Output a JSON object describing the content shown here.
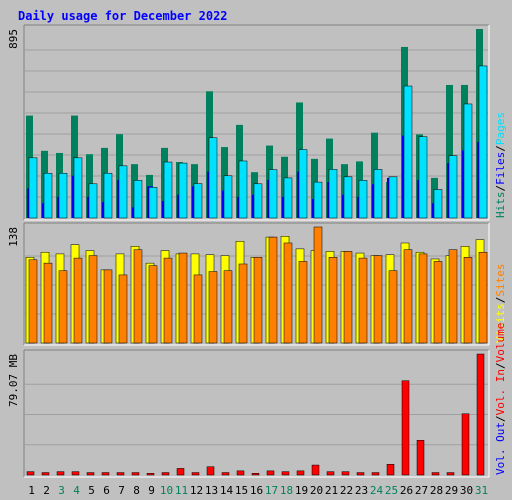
{
  "title": "Daily usage for December 2022",
  "colors": {
    "background": "#c0c0c0",
    "hits": "#00805c",
    "files": "#0000ff",
    "pages": "#00e0ff",
    "visits": "#ffff00",
    "sites": "#ff8000",
    "kbin": "#ff0000",
    "kbout": "#0000ff",
    "title": "#0000ff",
    "weekend_day": "#00805c"
  },
  "chart_data": [
    {
      "type": "bar",
      "name": "hits-files-pages",
      "categories": [
        "1",
        "2",
        "3",
        "4",
        "5",
        "6",
        "7",
        "8",
        "9",
        "10",
        "11",
        "12",
        "13",
        "14",
        "15",
        "16",
        "17",
        "18",
        "19",
        "20",
        "21",
        "22",
        "23",
        "24",
        "25",
        "26",
        "27",
        "28",
        "29",
        "30",
        "31"
      ],
      "weekend_days": [
        "3",
        "4",
        "10",
        "11",
        "17",
        "18",
        "24",
        "25",
        "31"
      ],
      "ymax_label": "895",
      "ylim": [
        0,
        895
      ],
      "side_labels": [
        "Hits",
        "Files",
        "Pages"
      ],
      "series": [
        {
          "name": "Hits",
          "values": [
            485,
            318,
            308,
            485,
            302,
            332,
            397,
            255,
            204,
            332,
            265,
            255,
            600,
            336,
            441,
            217,
            343,
            290,
            547,
            280,
            376,
            255,
            268,
            404,
            170,
            810,
            396,
            190,
            630,
            630,
            895
          ]
        },
        {
          "name": "Files",
          "values": [
            140,
            70,
            100,
            200,
            100,
            75,
            180,
            50,
            150,
            80,
            110,
            150,
            220,
            130,
            100,
            110,
            180,
            100,
            220,
            90,
            170,
            110,
            100,
            160,
            190,
            390,
            180,
            70,
            260,
            320,
            360
          ]
        },
        {
          "name": "Pages",
          "values": [
            285,
            212,
            212,
            285,
            162,
            212,
            247,
            178,
            145,
            265,
            260,
            163,
            380,
            200,
            270,
            162,
            229,
            190,
            324,
            170,
            230,
            195,
            178,
            230,
            195,
            625,
            385,
            135,
            295,
            540,
            720
          ]
        }
      ]
    },
    {
      "type": "bar",
      "name": "visits-sites",
      "categories": [
        "1",
        "2",
        "3",
        "4",
        "5",
        "6",
        "7",
        "8",
        "9",
        "10",
        "11",
        "12",
        "13",
        "14",
        "15",
        "16",
        "17",
        "18",
        "19",
        "20",
        "21",
        "22",
        "23",
        "24",
        "25",
        "26",
        "27",
        "28",
        "29",
        "30",
        "31"
      ],
      "ymax_label": "138",
      "ylim": [
        0,
        138
      ],
      "side_labels": [
        "Visits",
        "Sites"
      ],
      "series": [
        {
          "name": "Visits",
          "values": [
            102,
            108,
            106,
            117,
            110,
            87,
            106,
            115,
            95,
            110,
            106,
            106,
            105,
            104,
            121,
            102,
            126,
            127,
            112,
            110,
            109,
            109,
            107,
            104,
            105,
            119,
            108,
            100,
            104,
            115,
            123
          ]
        },
        {
          "name": "Sites",
          "values": [
            99,
            95,
            86,
            101,
            104,
            87,
            81,
            111,
            92,
            101,
            107,
            81,
            85,
            86,
            94,
            102,
            126,
            119,
            97,
            138,
            102,
            109,
            101,
            104,
            86,
            111,
            106,
            97,
            111,
            102,
            108
          ]
        }
      ]
    },
    {
      "type": "bar",
      "name": "volume",
      "categories": [
        "1",
        "2",
        "3",
        "4",
        "5",
        "6",
        "7",
        "8",
        "9",
        "10",
        "11",
        "12",
        "13",
        "14",
        "15",
        "16",
        "17",
        "18",
        "19",
        "20",
        "21",
        "22",
        "23",
        "24",
        "25",
        "26",
        "27",
        "28",
        "29",
        "30",
        "31"
      ],
      "ymax_label": "79.07 MB",
      "ylim": [
        0,
        79.07
      ],
      "side_labels": [
        "Vol. Out",
        "Vol. In",
        "Volume"
      ],
      "series": [
        {
          "name": "Volume",
          "values": [
            2.2,
            1.6,
            2.2,
            2.2,
            1.6,
            1.6,
            1.6,
            1.6,
            1.1,
            1.6,
            4.3,
            1.6,
            5.4,
            1.6,
            2.7,
            1.1,
            2.7,
            2.2,
            2.7,
            6.5,
            2.2,
            2.2,
            1.6,
            1.6,
            7.0,
            61.6,
            22.7,
            1.6,
            1.6,
            40.0,
            79.07
          ]
        },
        {
          "name": "Vol. In",
          "values": [
            0,
            0,
            0,
            0,
            0,
            0,
            0,
            0,
            0,
            0,
            0,
            0,
            0,
            0,
            0,
            0,
            0,
            0,
            0,
            0,
            0,
            0,
            0,
            0,
            0,
            0,
            0,
            0,
            0,
            0,
            0
          ]
        },
        {
          "name": "Vol. Out",
          "values": [
            0,
            0,
            0,
            0,
            0,
            0,
            0,
            0,
            0,
            0,
            0,
            0,
            0,
            0,
            0,
            0,
            0,
            0,
            0,
            0,
            0,
            0,
            0,
            0,
            0,
            0,
            0,
            0,
            0,
            0,
            0
          ]
        }
      ]
    }
  ]
}
